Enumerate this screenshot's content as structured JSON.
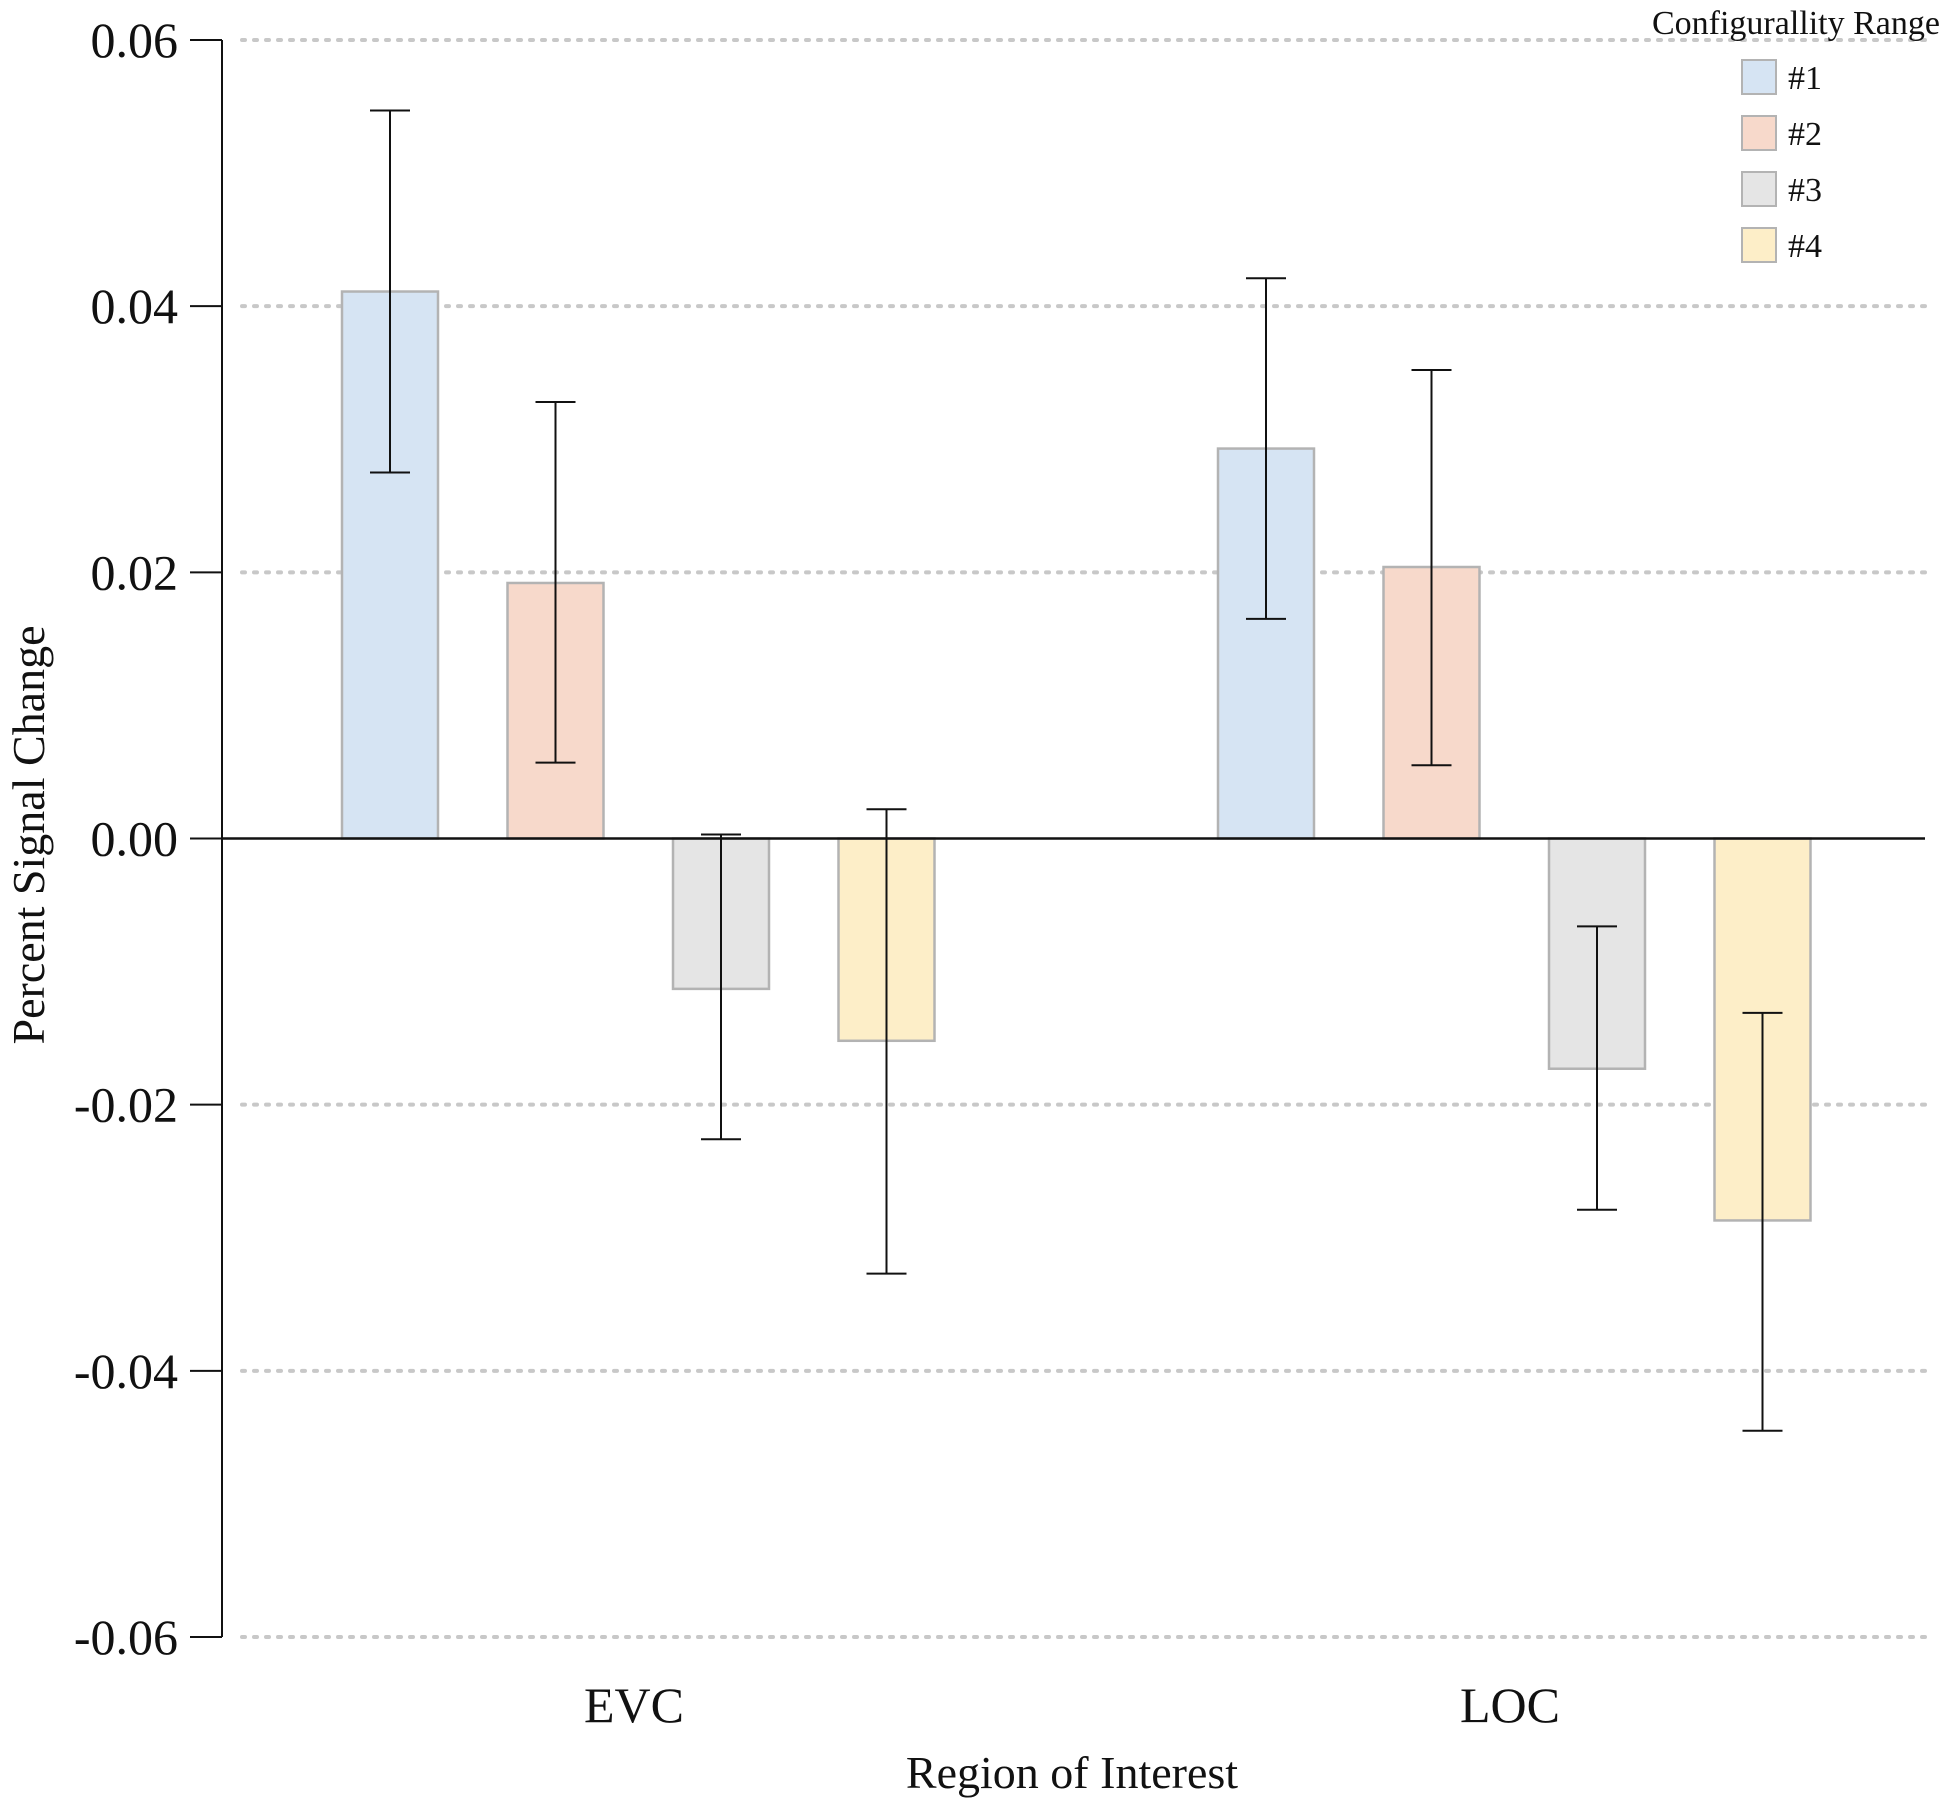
{
  "chart_data": {
    "type": "bar",
    "xlabel": "Region of Interest",
    "ylabel": "Percent Signal Change",
    "ylim": [
      -0.06,
      0.06
    ],
    "yticks": [
      0.06,
      0.04,
      0.02,
      0.0,
      -0.02,
      -0.04,
      -0.06
    ],
    "ytick_labels": [
      "0.06",
      "0.04",
      "0.02",
      "0.00",
      "-0.02",
      "-0.04",
      "-0.06"
    ],
    "grid": "dotted horizontal",
    "legend": {
      "title": "Configurallity Range",
      "placement": "top-right"
    },
    "categories": [
      "EVC",
      "LOC"
    ],
    "series": [
      {
        "name": "#1",
        "color": "#d6e4f3",
        "values": [
          0.0411,
          0.0293
        ],
        "err_low": [
          0.0275,
          0.0165
        ],
        "err_high": [
          0.0547,
          0.0421
        ]
      },
      {
        "name": "#2",
        "color": "#f7d9cb",
        "values": [
          0.0192,
          0.0204
        ],
        "err_low": [
          0.0057,
          0.0055
        ],
        "err_high": [
          0.0328,
          0.0352
        ]
      },
      {
        "name": "#3",
        "color": "#e5e5e5",
        "values": [
          -0.0113,
          -0.0173
        ],
        "err_low": [
          -0.0226,
          -0.0279
        ],
        "err_high": [
          0.0003,
          -0.0066
        ]
      },
      {
        "name": "#4",
        "color": "#fdeec8",
        "values": [
          -0.0152,
          -0.0287
        ],
        "err_low": [
          -0.0327,
          -0.0445
        ],
        "err_high": [
          0.0022,
          -0.0131
        ]
      }
    ]
  }
}
